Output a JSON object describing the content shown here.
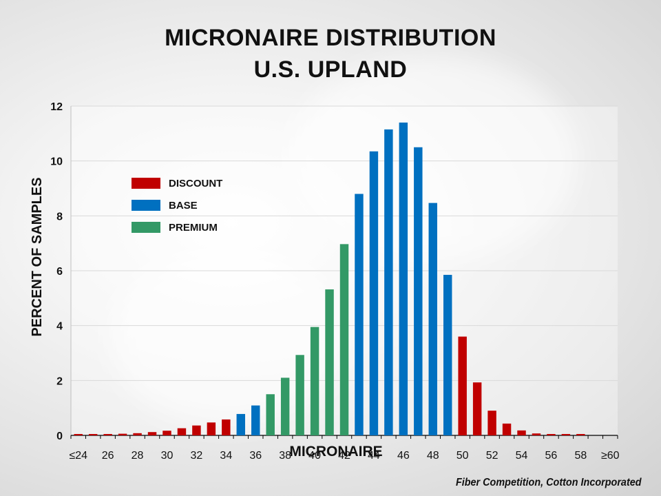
{
  "chart_data": {
    "type": "bar",
    "title": "MICRONAIRE DISTRIBUTION",
    "subtitle": "U.S. UPLAND",
    "xlabel": "MICRONAIRE",
    "ylabel": "PERCENT OF SAMPLES",
    "ylim": [
      0,
      12
    ],
    "yticks": [
      0,
      2,
      4,
      6,
      8,
      10,
      12
    ],
    "grid": true,
    "legend_position": "top-left",
    "categories": [
      "≤24",
      "25",
      "26",
      "27",
      "28",
      "29",
      "30",
      "31",
      "32",
      "33",
      "34",
      "35",
      "36",
      "37",
      "38",
      "39",
      "40",
      "41",
      "42",
      "43",
      "44",
      "45",
      "46",
      "47",
      "48",
      "49",
      "50",
      "51",
      "52",
      "53",
      "54",
      "55",
      "56",
      "57",
      "58",
      "59",
      "≥60"
    ],
    "tick_labels": {
      "≤24": "≤24",
      "26": "26",
      "28": "28",
      "30": "30",
      "32": "32",
      "34": "34",
      "36": "36",
      "38": "38",
      "40": "40",
      "42": "42",
      "44": "44",
      "46": "46",
      "48": "48",
      "50": "50",
      "52": "52",
      "54": "54",
      "56": "56",
      "58": "58",
      "≥60": "≥60"
    },
    "values": [
      0.05,
      0.05,
      0.05,
      0.06,
      0.08,
      0.12,
      0.17,
      0.26,
      0.36,
      0.47,
      0.58,
      0.78,
      1.09,
      1.5,
      2.1,
      2.93,
      3.95,
      5.32,
      6.97,
      8.8,
      10.35,
      11.15,
      11.4,
      10.5,
      8.47,
      5.85,
      3.6,
      1.93,
      0.9,
      0.43,
      0.18,
      0.07,
      0.05,
      0.05,
      0.05,
      0,
      0
    ],
    "groups": [
      "DISCOUNT",
      "DISCOUNT",
      "DISCOUNT",
      "DISCOUNT",
      "DISCOUNT",
      "DISCOUNT",
      "DISCOUNT",
      "DISCOUNT",
      "DISCOUNT",
      "DISCOUNT",
      "DISCOUNT",
      "BASE",
      "BASE",
      "PREMIUM",
      "PREMIUM",
      "PREMIUM",
      "PREMIUM",
      "PREMIUM",
      "PREMIUM",
      "BASE",
      "BASE",
      "BASE",
      "BASE",
      "BASE",
      "BASE",
      "BASE",
      "DISCOUNT",
      "DISCOUNT",
      "DISCOUNT",
      "DISCOUNT",
      "DISCOUNT",
      "DISCOUNT",
      "DISCOUNT",
      "DISCOUNT",
      "DISCOUNT",
      "DISCOUNT",
      "DISCOUNT"
    ],
    "legend": [
      {
        "name": "DISCOUNT",
        "color": "#c00000"
      },
      {
        "name": "BASE",
        "color": "#0070c0"
      },
      {
        "name": "PREMIUM",
        "color": "#339966"
      }
    ]
  },
  "footer": {
    "credit": "Fiber Competition, Cotton Incorporated"
  }
}
